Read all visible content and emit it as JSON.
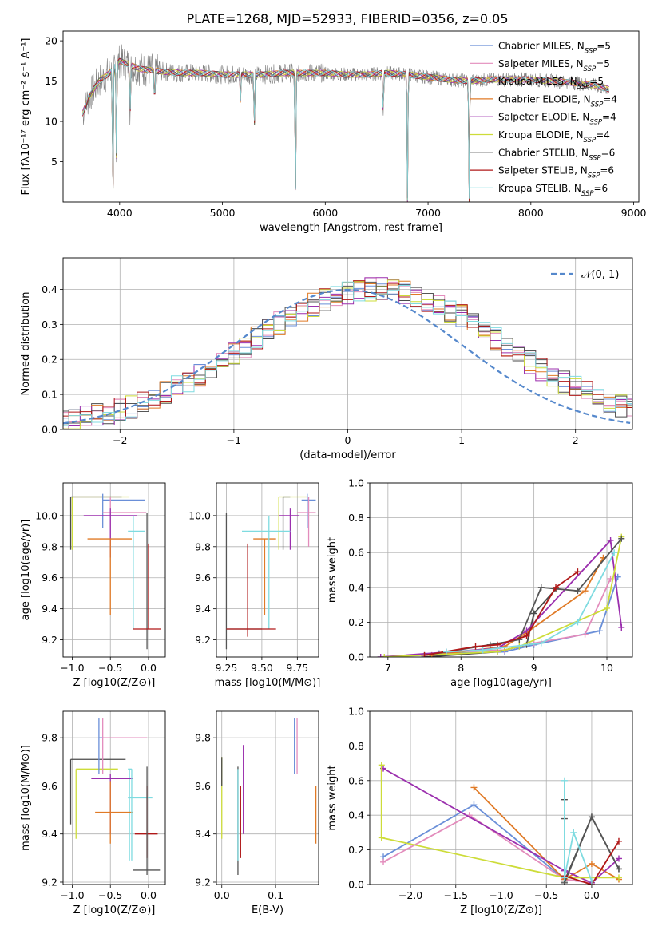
{
  "figure_title": "PLATE=1268, MJD=52933, FIBERID=0356, z=0.05",
  "colors": {
    "Chabrier MILES": "#6a8fd8",
    "Salpeter MILES": "#e38cbc",
    "Kroupa MILES": "#4a4a4a",
    "Chabrier ELODIE": "#e07a26",
    "Salpeter ELODIE": "#9b2fae",
    "Kroupa ELODIE": "#cddc39",
    "Chabrier STELIB": "#555555",
    "Salpeter STELIB": "#b01818",
    "Kroupa STELIB": "#7fdbe0",
    "normal": "#5588cc",
    "data": "#808080"
  },
  "chart_data": [
    {
      "type": "line",
      "title": "PLATE=1268, MJD=52933, FIBERID=0356, z=0.05",
      "xlabel": "wavelength [Angstrom, rest frame]",
      "ylabel": "Flux [fλ10⁻¹⁷ erg cm⁻² s⁻¹ A⁻¹]",
      "xlim": [
        3450,
        9050
      ],
      "ylim": [
        0,
        21.2
      ],
      "xticks": [
        "4000",
        "5000",
        "6000",
        "7000",
        "8000",
        "9000"
      ],
      "yticks": [
        "5",
        "10",
        "15",
        "20"
      ],
      "legend_position": "top-right",
      "series": [
        {
          "name": "Chabrier MILES, NSSP=5"
        },
        {
          "name": "Salpeter MILES, NSSP=5"
        },
        {
          "name": "Kroupa MILES, NSSP=5"
        },
        {
          "name": "Chabrier ELODIE, NSSP=4"
        },
        {
          "name": "Salpeter ELODIE, NSSP=4"
        },
        {
          "name": "Kroupa ELODIE, NSSP=4"
        },
        {
          "name": "Chabrier STELIB, NSSP=6"
        },
        {
          "name": "Salpeter STELIB, NSSP=6"
        },
        {
          "name": "Kroupa STELIB, NSSP=6"
        }
      ],
      "continuum": {
        "x": [
          3640,
          3700,
          3800,
          3900,
          4000,
          4100,
          4200,
          4400,
          4600,
          4800,
          5000,
          5200,
          5400,
          5600,
          5800,
          6000,
          6200,
          6400,
          6600,
          6800,
          7000,
          7200,
          7400,
          7600,
          7800,
          8000,
          8200,
          8400,
          8600,
          8760
        ],
        "y": [
          11.0,
          13.0,
          15.0,
          16.0,
          17.5,
          17.0,
          16.5,
          16.2,
          16.0,
          16.0,
          15.8,
          15.8,
          15.8,
          16.0,
          16.0,
          16.0,
          15.8,
          15.8,
          16.0,
          15.8,
          15.5,
          15.2,
          15.0,
          15.2,
          15.2,
          15.2,
          15.0,
          14.8,
          14.5,
          14.0
        ]
      },
      "absorption_lines": [
        {
          "x": 3934,
          "y": 0.2
        },
        {
          "x": 3969,
          "y": 5.4
        },
        {
          "x": 4102,
          "y": 11.0
        },
        {
          "x": 4340,
          "y": 12.3
        },
        {
          "x": 5175,
          "y": 12.6
        },
        {
          "x": 5310,
          "y": 9.2
        },
        {
          "x": 5710,
          "y": 0.2
        },
        {
          "x": 6563,
          "y": 10.5
        },
        {
          "x": 6800,
          "y": 0.2
        },
        {
          "x": 7400,
          "y": 0.2
        }
      ]
    },
    {
      "type": "line",
      "xlabel": "(data-model)/error",
      "ylabel": "Normed distribution",
      "xlim": [
        -2.5,
        2.5
      ],
      "ylim": [
        0,
        0.49
      ],
      "xticks": [
        "−2",
        "−1",
        "0",
        "1",
        "2"
      ],
      "yticks": [
        "0.0",
        "0.1",
        "0.2",
        "0.3",
        "0.4"
      ],
      "legend": [
        "𝒩(0, 1)"
      ],
      "legend_position": "top-right",
      "grid": true,
      "bin_width": 0.1,
      "histogram_base": [
        0.022,
        0.028,
        0.034,
        0.04,
        0.047,
        0.056,
        0.066,
        0.077,
        0.09,
        0.104,
        0.119,
        0.136,
        0.154,
        0.174,
        0.194,
        0.216,
        0.238,
        0.26,
        0.282,
        0.303,
        0.323,
        0.341,
        0.357,
        0.371,
        0.382,
        0.391,
        0.396,
        0.399,
        0.399,
        0.396,
        0.391,
        0.382,
        0.371,
        0.357,
        0.341,
        0.323,
        0.303,
        0.282,
        0.26,
        0.238,
        0.216,
        0.194,
        0.174,
        0.154,
        0.136,
        0.119,
        0.104,
        0.09,
        0.077,
        0.066,
        0.056,
        0.047,
        0.04,
        0.034,
        0.028,
        0.024,
        0.02
      ]
    },
    {
      "type": "scatter",
      "xlabel": "Z [log10(Z/Z⊙)]",
      "ylabel": "age  [log10(age/yr)]",
      "xlim": [
        -1.12,
        0.22
      ],
      "ylim": [
        9.09,
        10.21
      ],
      "xticks": [
        "−1.0",
        "−0.5",
        "0.0"
      ],
      "yticks": [
        "9.2",
        "9.4",
        "9.6",
        "9.8",
        "10.0"
      ],
      "grid": true,
      "points": [
        {
          "series": "Kroupa ELODIE",
          "x": -1.0,
          "y": 10.12,
          "xlo": -1.0,
          "xhi": -0.25,
          "ylo": 9.78,
          "yhi": 10.12,
          "cap": "corner"
        },
        {
          "series": "Kroupa MILES",
          "x": -1.02,
          "y": 10.12,
          "xlo": -1.02,
          "xhi": -0.35,
          "ylo": 9.78,
          "yhi": 10.12,
          "cap": "corner"
        },
        {
          "series": "Chabrier MILES",
          "x": -0.6,
          "y": 10.1,
          "xlo": -0.6,
          "xhi": -0.05,
          "ylo": 9.92,
          "yhi": 10.14
        },
        {
          "series": "Salpeter MILES",
          "x": -0.5,
          "y": 10.02,
          "xlo": -0.6,
          "xhi": -0.03,
          "ylo": 9.8,
          "yhi": 10.12
        },
        {
          "series": "Salpeter ELODIE",
          "x": -0.5,
          "y": 10.0,
          "xlo": -0.85,
          "xhi": -0.15,
          "ylo": 9.73,
          "yhi": 10.05
        },
        {
          "series": "Chabrier ELODIE",
          "x": -0.5,
          "y": 9.85,
          "xlo": -0.8,
          "xhi": -0.22,
          "ylo": 9.36,
          "yhi": 9.85
        },
        {
          "series": "Kroupa STELIB",
          "x": -0.2,
          "y": 9.9,
          "xlo": -0.27,
          "xhi": -0.05,
          "ylo": 9.27,
          "yhi": 10.0
        },
        {
          "series": "Chabrier STELIB",
          "x": -0.02,
          "y": 9.9,
          "xlo": -0.02,
          "xhi": -0.02,
          "ylo": 9.14,
          "yhi": 10.02
        },
        {
          "series": "Salpeter STELIB",
          "x": 0.0,
          "y": 9.27,
          "xlo": -0.2,
          "xhi": 0.16,
          "ylo": 9.27,
          "yhi": 9.82
        }
      ]
    },
    {
      "type": "scatter",
      "xlabel": "mass [log10(M/M⊙)]",
      "ylabel": "",
      "xlim": [
        9.18,
        9.9
      ],
      "ylim": [
        9.09,
        10.21
      ],
      "xticks": [
        "9.25",
        "9.50",
        "9.75"
      ],
      "yticks": [
        "9.2",
        "9.4",
        "9.6",
        "9.8",
        "10.0"
      ],
      "grid": true,
      "points": [
        {
          "series": "Kroupa ELODIE",
          "x": 9.62,
          "y": 10.12,
          "xlo": 9.62,
          "xhi": 9.82,
          "ylo": 9.78,
          "yhi": 10.12,
          "cap": "corner"
        },
        {
          "series": "Kroupa MILES",
          "x": 9.65,
          "y": 10.12,
          "xlo": 9.65,
          "xhi": 9.7,
          "ylo": 9.78,
          "yhi": 10.12,
          "cap": "corner"
        },
        {
          "series": "Chabrier MILES",
          "x": 9.82,
          "y": 10.1,
          "xlo": 9.78,
          "xhi": 9.88,
          "ylo": 9.92,
          "yhi": 10.14
        },
        {
          "series": "Salpeter MILES",
          "x": 9.83,
          "y": 10.02,
          "xlo": 9.75,
          "xhi": 9.88,
          "ylo": 9.8,
          "yhi": 10.12
        },
        {
          "series": "Salpeter ELODIE",
          "x": 9.7,
          "y": 10.0,
          "xlo": 9.62,
          "xhi": 9.76,
          "ylo": 9.78,
          "yhi": 10.05
        },
        {
          "series": "Chabrier ELODIE",
          "x": 9.52,
          "y": 9.85,
          "xlo": 9.44,
          "xhi": 9.6,
          "ylo": 9.36,
          "yhi": 9.85
        },
        {
          "series": "Kroupa STELIB",
          "x": 9.55,
          "y": 9.9,
          "xlo": 9.36,
          "xhi": 9.7,
          "ylo": 9.27,
          "yhi": 10.0
        },
        {
          "series": "Chabrier STELIB",
          "x": 9.25,
          "y": 9.27,
          "xlo": 9.25,
          "xhi": 9.5,
          "ylo": 9.14,
          "yhi": 10.02
        },
        {
          "series": "Salpeter STELIB",
          "x": 9.4,
          "y": 9.27,
          "xlo": 9.25,
          "xhi": 9.6,
          "ylo": 9.22,
          "yhi": 9.82
        }
      ]
    },
    {
      "type": "line",
      "xlabel": "age  [log10(age/yr)]",
      "ylabel": "mass weight",
      "xlim": [
        6.75,
        10.35
      ],
      "ylim": [
        0,
        1.0
      ],
      "xticks": [
        "7",
        "8",
        "9",
        "10"
      ],
      "yticks": [
        "0.0",
        "0.2",
        "0.4",
        "0.6",
        "0.8",
        "1.0"
      ],
      "grid": true,
      "series": [
        {
          "series": "Chabrier MILES",
          "x": [
            7.7,
            8.6,
            9.0,
            9.9,
            10.15
          ],
          "y": [
            0.02,
            0.03,
            0.07,
            0.15,
            0.46
          ]
        },
        {
          "series": "Salpeter MILES",
          "x": [
            7.8,
            8.6,
            9.0,
            9.7,
            10.05
          ],
          "y": [
            0.03,
            0.04,
            0.08,
            0.13,
            0.45
          ]
        },
        {
          "series": "Kroupa MILES",
          "x": [
            7.5,
            8.5,
            8.9,
            9.0,
            9.3
          ],
          "y": [
            0.0,
            0.03,
            0.07,
            0.25,
            0.39
          ]
        },
        {
          "series": "Chabrier ELODIE",
          "x": [
            7.6,
            8.6,
            8.9,
            9.7,
            9.95
          ],
          "y": [
            0.01,
            0.06,
            0.14,
            0.38,
            0.57
          ]
        },
        {
          "series": "Salpeter ELODIE",
          "x": [
            6.9,
            8.5,
            8.9,
            10.05,
            10.2
          ],
          "y": [
            0.0,
            0.05,
            0.15,
            0.67,
            0.17
          ]
        },
        {
          "series": "Kroupa ELODIE",
          "x": [
            6.95,
            8.5,
            8.8,
            10.0,
            10.2
          ],
          "y": [
            0.0,
            0.03,
            0.06,
            0.28,
            0.69
          ]
        },
        {
          "series": "Chabrier STELIB",
          "x": [
            7.5,
            8.4,
            8.8,
            9.1,
            9.6,
            10.2
          ],
          "y": [
            0.01,
            0.07,
            0.1,
            0.4,
            0.38,
            0.68
          ]
        },
        {
          "series": "Salpeter STELIB",
          "x": [
            7.5,
            8.2,
            8.5,
            8.9,
            9.3,
            9.6
          ],
          "y": [
            0.01,
            0.06,
            0.07,
            0.12,
            0.4,
            0.49
          ]
        },
        {
          "series": "Kroupa STELIB",
          "x": [
            7.8,
            8.3,
            9.1,
            9.6,
            10.1
          ],
          "y": [
            0.03,
            0.04,
            0.08,
            0.2,
            0.6
          ]
        }
      ]
    },
    {
      "type": "scatter",
      "xlabel": "Z [log10(Z/Z⊙)]",
      "ylabel": "mass [log10(M/M⊙)]",
      "xlim": [
        -1.12,
        0.22
      ],
      "ylim": [
        9.19,
        9.91
      ],
      "xticks": [
        "−1.0",
        "−0.5",
        "0.0"
      ],
      "yticks": [
        "9.2",
        "9.4",
        "9.6",
        "9.8"
      ],
      "grid": true,
      "points": [
        {
          "series": "Kroupa MILES",
          "x": -1.02,
          "y": 9.71,
          "xlo": -1.02,
          "xhi": -0.3,
          "ylo": 9.44,
          "yhi": 9.71,
          "cap": "corner"
        },
        {
          "series": "Kroupa ELODIE",
          "x": -0.95,
          "y": 9.67,
          "xlo": -0.95,
          "xhi": -0.4,
          "ylo": 9.38,
          "yhi": 9.67,
          "cap": "corner"
        },
        {
          "series": "Chabrier MILES",
          "x": -0.65,
          "y": 9.8,
          "xlo": -0.65,
          "xhi": -0.6,
          "ylo": 9.65,
          "yhi": 9.88
        },
        {
          "series": "Salpeter MILES",
          "x": -0.6,
          "y": 9.8,
          "xlo": -0.6,
          "xhi": -0.02,
          "ylo": 9.65,
          "yhi": 9.88
        },
        {
          "series": "Kroupa STELIB",
          "x": -0.25,
          "y": 9.67,
          "xlo": -0.27,
          "xhi": -0.22,
          "ylo": 9.29,
          "yhi": 9.67
        },
        {
          "series": "Salpeter ELODIE",
          "x": -0.5,
          "y": 9.63,
          "xlo": -0.75,
          "xhi": -0.2,
          "ylo": 9.4,
          "yhi": 9.65
        },
        {
          "series": "Chabrier ELODIE",
          "x": -0.5,
          "y": 9.49,
          "xlo": -0.7,
          "xhi": -0.2,
          "ylo": 9.36,
          "yhi": 9.62
        },
        {
          "series": "Kroupa STELIB",
          "x": -0.22,
          "y": 9.55,
          "xlo": -0.27,
          "xhi": 0.05,
          "ylo": 9.29,
          "yhi": 9.67
        },
        {
          "series": "Salpeter STELIB",
          "x": -0.02,
          "y": 9.4,
          "xlo": -0.18,
          "xhi": 0.12,
          "ylo": 9.3,
          "yhi": 9.6
        },
        {
          "series": "Chabrier STELIB",
          "x": -0.02,
          "y": 9.25,
          "xlo": -0.2,
          "xhi": 0.15,
          "ylo": 9.23,
          "yhi": 9.68
        }
      ]
    },
    {
      "type": "scatter",
      "xlabel": "E(B-V)",
      "ylabel": "",
      "xlim": [
        -0.01,
        0.18
      ],
      "ylim": [
        9.19,
        9.91
      ],
      "xticks": [
        "0.0",
        "0.1"
      ],
      "yticks": [
        "9.2",
        "9.4",
        "9.6",
        "9.8"
      ],
      "grid": true,
      "points": [
        {
          "series": "Kroupa ELODIE",
          "x": 0.0,
          "ylo": 9.38,
          "yhi": 9.72
        },
        {
          "series": "Kroupa MILES",
          "x": 0.0,
          "ylo": 9.6,
          "yhi": 9.72
        },
        {
          "series": "Chabrier STELIB",
          "x": 0.03,
          "ylo": 9.23,
          "yhi": 9.68
        },
        {
          "series": "Kroupa STELIB",
          "x": 0.03,
          "ylo": 9.29,
          "yhi": 9.67
        },
        {
          "series": "Salpeter STELIB",
          "x": 0.035,
          "ylo": 9.3,
          "yhi": 9.6
        },
        {
          "series": "Salpeter ELODIE",
          "x": 0.04,
          "ylo": 9.4,
          "yhi": 9.77
        },
        {
          "series": "Chabrier MILES",
          "x": 0.135,
          "ylo": 9.65,
          "yhi": 9.88
        },
        {
          "series": "Salpeter MILES",
          "x": 0.14,
          "ylo": 9.65,
          "yhi": 9.88
        },
        {
          "series": "Chabrier ELODIE",
          "x": 0.175,
          "ylo": 9.36,
          "yhi": 9.6
        }
      ]
    },
    {
      "type": "line",
      "xlabel": "Z [log10(Z/Z⊙)]",
      "ylabel": "mass weight",
      "xlim": [
        -2.45,
        0.45
      ],
      "ylim": [
        0,
        1.0
      ],
      "xticks": [
        "−2.0",
        "−1.5",
        "−1.0",
        "−0.5",
        "0.0"
      ],
      "yticks": [
        "0.0",
        "0.2",
        "0.4",
        "0.6",
        "0.8",
        "1.0"
      ],
      "grid": true,
      "series": [
        {
          "series": "Chabrier MILES",
          "x": [
            -2.3,
            -1.3,
            -0.3,
            0.0
          ],
          "y": [
            0.16,
            0.46,
            0.03,
            0.01
          ]
        },
        {
          "series": "Salpeter MILES",
          "x": [
            -2.3,
            -1.35,
            -0.3,
            0.0
          ],
          "y": [
            0.13,
            0.4,
            0.03,
            0.01
          ]
        },
        {
          "series": "Kroupa MILES",
          "x": [
            -0.3,
            -0.3,
            0.0,
            0.3
          ],
          "y": [
            0.49,
            0.02,
            0.39,
            0.09
          ]
        },
        {
          "series": "Chabrier ELODIE",
          "x": [
            -1.3,
            -0.3,
            0.0,
            0.3
          ],
          "y": [
            0.56,
            0.03,
            0.12,
            0.03
          ]
        },
        {
          "series": "Salpeter ELODIE",
          "x": [
            -2.3,
            -0.3,
            0.0,
            0.3
          ],
          "y": [
            0.67,
            0.08,
            0.01,
            0.15
          ]
        },
        {
          "series": "Kroupa ELODIE",
          "x": [
            -2.32,
            -2.32,
            -0.3,
            0.3
          ],
          "y": [
            0.69,
            0.27,
            0.04,
            0.04
          ]
        },
        {
          "series": "Chabrier STELIB",
          "x": [
            -0.3,
            -0.3,
            0.0,
            0.3
          ],
          "y": [
            0.38,
            0.01,
            0.39,
            0.09
          ]
        },
        {
          "series": "Salpeter STELIB",
          "x": [
            -0.3,
            0.0,
            0.3
          ],
          "y": [
            0.05,
            0.0,
            0.25
          ]
        },
        {
          "series": "Kroupa STELIB",
          "x": [
            -0.3,
            -0.3,
            -0.2,
            0.0
          ],
          "y": [
            0.6,
            0.04,
            0.3,
            0.02
          ]
        }
      ]
    }
  ]
}
